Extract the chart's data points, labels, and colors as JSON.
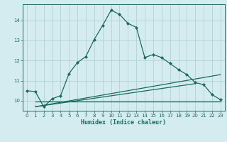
{
  "xlabel": "Humidex (Indice chaleur)",
  "ylabel": "",
  "bg_color": "#d4ecf0",
  "grid_color": "#aeccce",
  "line_color": "#1a6b5a",
  "xlim": [
    -0.5,
    23.5
  ],
  "ylim": [
    9.5,
    14.8
  ],
  "xticks": [
    0,
    1,
    2,
    3,
    4,
    5,
    6,
    7,
    8,
    9,
    10,
    11,
    12,
    13,
    14,
    15,
    16,
    17,
    18,
    19,
    20,
    21,
    22,
    23
  ],
  "yticks": [
    10,
    11,
    12,
    13,
    14
  ],
  "curve1_x": [
    0,
    1,
    2,
    3,
    4,
    5,
    6,
    7,
    8,
    9,
    10,
    11,
    12,
    13,
    14,
    15,
    16,
    17,
    18,
    19,
    20,
    21,
    22,
    23
  ],
  "curve1_y": [
    10.5,
    10.45,
    9.7,
    10.1,
    10.25,
    11.35,
    11.9,
    12.2,
    13.05,
    13.75,
    14.5,
    14.3,
    13.85,
    13.65,
    12.15,
    12.3,
    12.15,
    11.85,
    11.55,
    11.3,
    10.9,
    10.8,
    10.3,
    10.05
  ],
  "curve2_x": [
    1,
    23
  ],
  "curve2_y": [
    9.7,
    11.3
  ],
  "curve3_x": [
    1,
    20
  ],
  "curve3_y": [
    9.7,
    10.85
  ]
}
